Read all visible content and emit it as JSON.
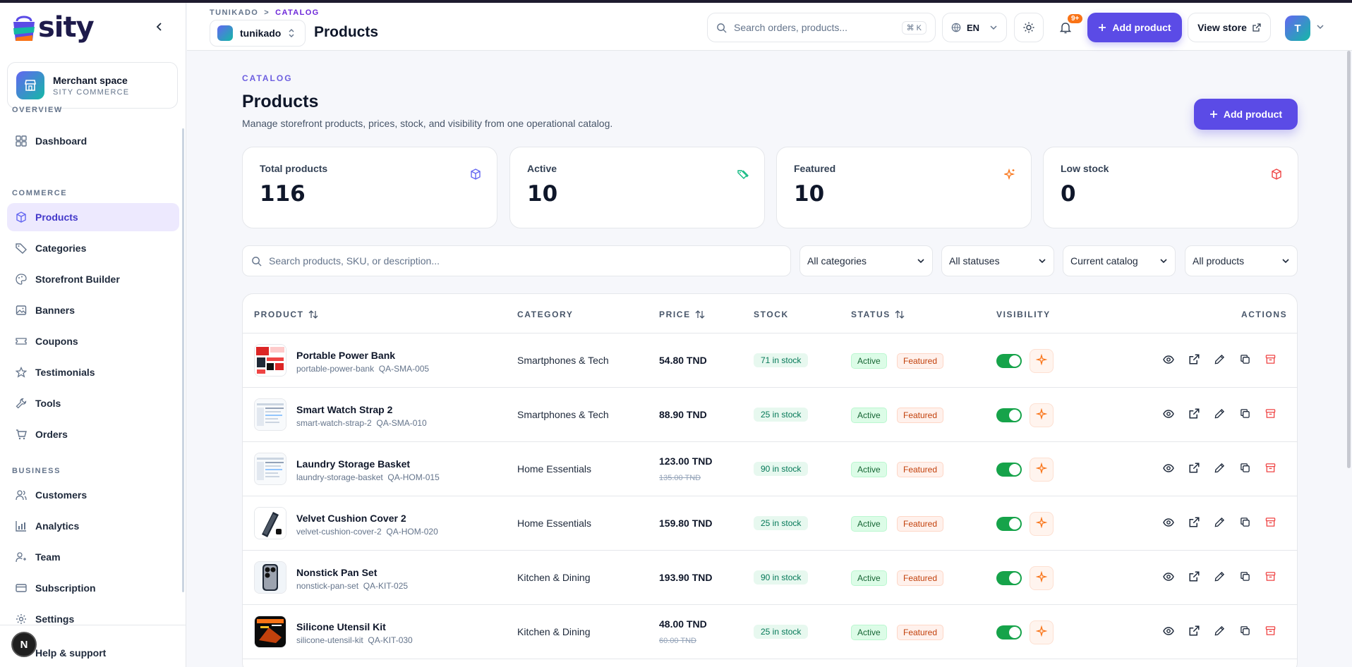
{
  "brand": {
    "logo_text": "sity"
  },
  "merchant": {
    "name": "Merchant space",
    "sub": "SITY COMMERCE"
  },
  "nav": {
    "overview_head": "OVERVIEW",
    "commerce_head": "COMMERCE",
    "business_head": "BUSINESS",
    "overview": [
      {
        "label": "Dashboard",
        "icon": "grid-icon"
      }
    ],
    "commerce": [
      {
        "label": "Products",
        "icon": "box-icon",
        "active": true
      },
      {
        "label": "Categories",
        "icon": "tag-icon"
      },
      {
        "label": "Storefront Builder",
        "icon": "palette-icon"
      },
      {
        "label": "Banners",
        "icon": "image-icon"
      },
      {
        "label": "Coupons",
        "icon": "ticket-icon"
      },
      {
        "label": "Testimonials",
        "icon": "star-icon"
      },
      {
        "label": "Tools",
        "icon": "wrench-icon"
      },
      {
        "label": "Orders",
        "icon": "cart-icon"
      }
    ],
    "business": [
      {
        "label": "Customers",
        "icon": "users-icon"
      },
      {
        "label": "Analytics",
        "icon": "chart-icon"
      },
      {
        "label": "Team",
        "icon": "team-icon"
      },
      {
        "label": "Subscription",
        "icon": "card-icon"
      },
      {
        "label": "Settings",
        "icon": "gear-icon"
      }
    ],
    "help": "Help & support",
    "n_badge": "N"
  },
  "header": {
    "crumb_root": "TUNIKADO",
    "crumb_sep": ">",
    "crumb_current": "CATALOG",
    "store": "tunikado",
    "title": "Products",
    "search_placeholder": "Search orders, products...",
    "shortcut": "⌘ K",
    "lang": "EN",
    "notif_badge": "9+",
    "add_product": "Add product",
    "view_store": "View store",
    "user_initial": "T"
  },
  "page": {
    "eyebrow": "CATALOG",
    "title": "Products",
    "description": "Manage storefront products, prices, stock, and visibility from one operational catalog.",
    "add_product": "Add product"
  },
  "stats": [
    {
      "label": "Total products",
      "value": "116",
      "icon": "cube-icon",
      "color": "#6366f1"
    },
    {
      "label": "Active",
      "value": "10",
      "icon": "tags-icon",
      "color": "#10b981"
    },
    {
      "label": "Featured",
      "value": "10",
      "icon": "sparkle-icon",
      "color": "#f97316"
    },
    {
      "label": "Low stock",
      "value": "0",
      "icon": "package-alert-icon",
      "color": "#ef4444"
    }
  ],
  "filters": {
    "search_placeholder": "Search products, SKU, or description...",
    "category": "All categories",
    "status": "All statuses",
    "catalog": "Current catalog",
    "products": "All products"
  },
  "table": {
    "headers": {
      "product": "PRODUCT",
      "category": "CATEGORY",
      "price": "PRICE",
      "stock": "STOCK",
      "status": "STATUS",
      "visibility": "VISIBILITY",
      "actions": "ACTIONS"
    },
    "rows": [
      {
        "name": "Portable Power Bank",
        "slug": "portable-power-bank",
        "sku": "QA-SMA-005",
        "category": "Smartphones & Tech",
        "price": "54.80 TND",
        "old_price": "",
        "stock": "71 in stock",
        "status": "Active",
        "tag": "Featured",
        "visible": true,
        "thumb": "red-grid"
      },
      {
        "name": "Smart Watch Strap 2",
        "slug": "smart-watch-strap-2",
        "sku": "QA-SMA-010",
        "category": "Smartphones & Tech",
        "price": "88.90 TND",
        "old_price": "",
        "stock": "25 in stock",
        "status": "Active",
        "tag": "Featured",
        "visible": true,
        "thumb": "screenshot"
      },
      {
        "name": "Laundry Storage Basket",
        "slug": "laundry-storage-basket",
        "sku": "QA-HOM-015",
        "category": "Home Essentials",
        "price": "123.00 TND",
        "old_price": "135.00 TND",
        "stock": "90 in stock",
        "status": "Active",
        "tag": "Featured",
        "visible": true,
        "thumb": "screenshot"
      },
      {
        "name": "Velvet Cushion Cover 2",
        "slug": "velvet-cushion-cover-2",
        "sku": "QA-HOM-020",
        "category": "Home Essentials",
        "price": "159.80 TND",
        "old_price": "",
        "stock": "25 in stock",
        "status": "Active",
        "tag": "Featured",
        "visible": true,
        "thumb": "device"
      },
      {
        "name": "Nonstick Pan Set",
        "slug": "nonstick-pan-set",
        "sku": "QA-KIT-025",
        "category": "Kitchen & Dining",
        "price": "193.90 TND",
        "old_price": "",
        "stock": "90 in stock",
        "status": "Active",
        "tag": "Featured",
        "visible": true,
        "thumb": "phone"
      },
      {
        "name": "Silicone Utensil Kit",
        "slug": "silicone-utensil-kit",
        "sku": "QA-KIT-030",
        "category": "Kitchen & Dining",
        "price": "48.00 TND",
        "old_price": "60.00 TND",
        "stock": "25 in stock",
        "status": "Active",
        "tag": "Featured",
        "visible": true,
        "thumb": "dark"
      }
    ]
  }
}
